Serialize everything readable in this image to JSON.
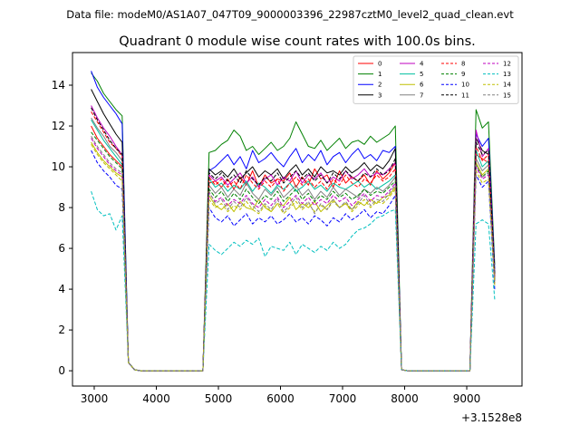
{
  "figure": {
    "suptitle": "Data file: modeM0/AS1A07_047T09_9000003396_22987cztM0_level2_quad_clean.evt"
  },
  "chart_data": {
    "type": "line",
    "title": "Quadrant 0 module wise count rates with 100.0s bins.",
    "xlabel": "",
    "ylabel": "",
    "x_offset_label": "+3.1528e8",
    "xlim": [
      2650,
      9890
    ],
    "ylim": [
      -0.75,
      15.6
    ],
    "xticks": [
      3000,
      4000,
      5000,
      6000,
      7000,
      8000,
      9000
    ],
    "xtick_labels": [
      "3000",
      "4000",
      "5000",
      "6000",
      "7000",
      "8000",
      "9000"
    ],
    "yticks": [
      0,
      2,
      4,
      6,
      8,
      10,
      12,
      14
    ],
    "ytick_labels": [
      "0",
      "2",
      "4",
      "6",
      "8",
      "10",
      "12",
      "14"
    ],
    "legend_location": "top-right",
    "legend_columns": 4,
    "segments": [
      {
        "x_start": 2950,
        "x_step": 100,
        "n_points": 6
      },
      {
        "x_start": 4850,
        "x_step": 100,
        "n_points": 31
      },
      {
        "x_start": 9150,
        "x_step": 100,
        "n_points": 4
      }
    ],
    "gaps": [
      {
        "x": [
          3550,
          3650,
          3750,
          3850,
          3950,
          4750
        ],
        "y": [
          0.4,
          0.05,
          0,
          0,
          0,
          0
        ]
      },
      {
        "x": [
          7950,
          8050,
          8950,
          9050
        ],
        "y": [
          0.05,
          0,
          0,
          0
        ]
      }
    ],
    "series": [
      {
        "name": "0",
        "color": "#ff0000",
        "dashed": false,
        "values": [
          [
            12.0,
            11.4,
            11.0,
            10.6,
            10.3,
            10.0
          ],
          [
            9.2,
            9.3,
            9.0,
            9.4,
            8.9,
            9.5,
            9.1,
            9.8,
            9.0,
            9.6,
            9.2,
            9.4,
            9.3,
            9.7,
            9.0,
            9.5,
            9.1,
            9.9,
            9.4,
            9.6,
            9.0,
            9.8,
            9.2,
            9.5,
            9.3,
            9.6,
            9.1,
            9.8,
            9.4,
            9.7,
            10.2
          ],
          [
            10.6,
            10.4,
            10.2,
            4.6
          ]
        ]
      },
      {
        "name": "1",
        "color": "#008000",
        "dashed": false,
        "values": [
          [
            14.6,
            14.2,
            13.6,
            13.2,
            12.8,
            12.5
          ],
          [
            10.7,
            10.8,
            11.1,
            11.3,
            11.8,
            11.5,
            10.8,
            11.0,
            10.6,
            10.9,
            11.2,
            10.8,
            11.0,
            11.4,
            12.2,
            11.6,
            11.0,
            10.9,
            11.3,
            10.8,
            11.1,
            11.4,
            10.9,
            11.2,
            11.3,
            11.1,
            11.5,
            11.2,
            11.4,
            11.6,
            12.0
          ],
          [
            12.8,
            11.9,
            12.2,
            5.2
          ]
        ]
      },
      {
        "name": "2",
        "color": "#0000ff",
        "dashed": false,
        "values": [
          [
            14.7,
            13.9,
            13.4,
            13.0,
            12.6,
            12.1
          ],
          [
            9.8,
            10.0,
            10.3,
            10.6,
            10.1,
            10.5,
            9.9,
            10.8,
            10.2,
            10.4,
            10.7,
            10.3,
            10.0,
            10.5,
            10.9,
            10.2,
            10.6,
            10.3,
            10.8,
            10.1,
            10.5,
            10.7,
            10.2,
            10.6,
            10.9,
            10.4,
            10.6,
            10.3,
            10.8,
            10.7,
            11.0
          ],
          [
            11.6,
            11.0,
            11.4,
            5.0
          ]
        ]
      },
      {
        "name": "3",
        "color": "#000000",
        "dashed": false,
        "values": [
          [
            13.8,
            13.2,
            12.6,
            12.1,
            11.6,
            11.2
          ],
          [
            9.9,
            9.6,
            9.8,
            9.5,
            9.9,
            9.4,
            9.7,
            10.0,
            9.5,
            9.8,
            9.6,
            9.9,
            9.4,
            9.8,
            10.1,
            9.6,
            9.9,
            9.5,
            10.0,
            9.7,
            9.8,
            9.6,
            10.0,
            9.7,
            9.9,
            10.2,
            9.8,
            10.1,
            9.9,
            10.3,
            10.9
          ],
          [
            11.4,
            10.8,
            10.6,
            4.8
          ]
        ]
      },
      {
        "name": "4",
        "color": "#bf00bf",
        "dashed": false,
        "values": [
          [
            13.0,
            12.4,
            11.9,
            11.5,
            11.0,
            10.6
          ],
          [
            9.6,
            9.3,
            9.5,
            9.1,
            9.4,
            9.7,
            9.2,
            9.5,
            9.0,
            9.4,
            9.6,
            9.1,
            9.5,
            9.3,
            9.8,
            9.2,
            9.6,
            9.4,
            9.7,
            9.2,
            9.5,
            9.3,
            9.8,
            9.4,
            9.6,
            9.9,
            9.5,
            9.7,
            9.6,
            9.9,
            10.2
          ],
          [
            11.8,
            10.5,
            10.9,
            4.7
          ]
        ]
      },
      {
        "name": "5",
        "color": "#00bf9f",
        "dashed": false,
        "values": [
          [
            12.3,
            11.8,
            11.3,
            10.9,
            10.5,
            10.1
          ],
          [
            9.4,
            9.0,
            9.2,
            8.8,
            9.1,
            8.9,
            9.3,
            8.8,
            9.2,
            9.0,
            8.7,
            9.1,
            8.9,
            9.2,
            8.8,
            9.0,
            9.3,
            8.9,
            9.1,
            8.8,
            9.2,
            9.0,
            8.9,
            9.1,
            9.3,
            9.0,
            9.2,
            8.9,
            9.1,
            9.3,
            9.6
          ],
          [
            10.8,
            10.0,
            10.3,
            4.6
          ]
        ]
      },
      {
        "name": "6",
        "color": "#bfbf00",
        "dashed": false,
        "values": [
          [
            11.2,
            10.7,
            10.3,
            10.0,
            9.7,
            9.5
          ],
          [
            8.6,
            8.1,
            7.9,
            8.2,
            7.8,
            8.3,
            8.0,
            7.9,
            8.4,
            8.0,
            7.8,
            8.2,
            8.1,
            8.5,
            7.9,
            8.2,
            8.0,
            8.3,
            7.8,
            8.1,
            8.4,
            8.0,
            8.2,
            7.9,
            8.3,
            8.1,
            8.4,
            8.2,
            8.5,
            8.6,
            9.0
          ],
          [
            10.2,
            9.6,
            9.9,
            4.3
          ]
        ]
      },
      {
        "name": "7",
        "color": "#808080",
        "dashed": false,
        "values": [
          [
            12.4,
            11.9,
            11.5,
            11.0,
            10.7,
            10.3
          ],
          [
            9.1,
            8.7,
            9.0,
            8.5,
            8.9,
            8.6,
            9.2,
            8.7,
            8.4,
            8.9,
            8.6,
            9.0,
            8.5,
            8.8,
            9.1,
            8.6,
            8.9,
            8.4,
            8.8,
            8.5,
            9.0,
            8.6,
            8.9,
            8.7,
            8.5,
            8.9,
            8.7,
            9.0,
            8.8,
            9.1,
            9.5
          ],
          [
            10.4,
            9.8,
            10.1,
            4.5
          ]
        ]
      },
      {
        "name": "8",
        "color": "#ff0000",
        "dashed": true,
        "values": [
          [
            12.7,
            12.2,
            11.7,
            11.2,
            10.9,
            10.5
          ],
          [
            9.5,
            9.1,
            9.4,
            9.0,
            9.3,
            8.9,
            9.6,
            9.2,
            8.9,
            9.3,
            9.0,
            9.4,
            8.8,
            9.2,
            9.5,
            9.1,
            9.4,
            9.0,
            9.3,
            8.9,
            9.4,
            9.1,
            9.6,
            9.2,
            9.0,
            9.4,
            9.2,
            9.6,
            9.3,
            9.5,
            9.9
          ],
          [
            11.0,
            10.3,
            10.6,
            4.6
          ]
        ]
      },
      {
        "name": "9",
        "color": "#008000",
        "dashed": true,
        "values": [
          [
            11.7,
            11.3,
            10.9,
            10.5,
            10.2,
            9.9
          ],
          [
            8.9,
            8.5,
            8.8,
            8.3,
            8.7,
            8.4,
            8.9,
            8.5,
            8.2,
            8.6,
            8.4,
            8.8,
            8.3,
            8.6,
            8.9,
            8.4,
            8.7,
            8.3,
            8.6,
            8.4,
            8.8,
            8.5,
            8.7,
            8.4,
            8.6,
            8.9,
            8.6,
            8.8,
            8.7,
            9.0,
            9.3
          ],
          [
            10.1,
            9.5,
            9.8,
            4.4
          ]
        ]
      },
      {
        "name": "10",
        "color": "#0000ff",
        "dashed": true,
        "values": [
          [
            10.8,
            10.2,
            9.8,
            9.5,
            9.1,
            8.9
          ],
          [
            8.0,
            7.5,
            7.3,
            7.6,
            7.1,
            7.4,
            7.7,
            7.2,
            7.5,
            7.3,
            7.6,
            7.2,
            7.4,
            7.7,
            7.3,
            7.5,
            7.2,
            7.6,
            7.4,
            7.1,
            7.5,
            7.3,
            7.7,
            7.4,
            7.6,
            7.9,
            7.5,
            7.8,
            7.7,
            8.1,
            8.6
          ],
          [
            9.6,
            9.0,
            9.3,
            4.0
          ]
        ]
      },
      {
        "name": "11",
        "color": "#000000",
        "dashed": true,
        "values": [
          [
            12.9,
            12.3,
            11.8,
            11.3,
            10.9,
            10.6
          ],
          [
            9.7,
            9.4,
            9.7,
            9.3,
            9.6,
            9.2,
            9.8,
            9.4,
            9.1,
            9.5,
            9.3,
            9.7,
            9.2,
            9.5,
            9.8,
            9.4,
            9.7,
            9.3,
            9.6,
            9.2,
            9.7,
            9.4,
            9.8,
            9.5,
            9.3,
            9.7,
            9.5,
            9.9,
            9.6,
            9.8,
            10.4
          ],
          [
            11.2,
            10.6,
            10.8,
            4.7
          ]
        ]
      },
      {
        "name": "12",
        "color": "#bf00bf",
        "dashed": true,
        "values": [
          [
            11.4,
            10.9,
            10.5,
            10.1,
            9.8,
            9.6
          ],
          [
            8.7,
            8.3,
            8.5,
            8.1,
            8.4,
            8.2,
            8.6,
            8.2,
            8.0,
            8.4,
            8.1,
            8.5,
            8.0,
            8.3,
            8.6,
            8.2,
            8.5,
            8.1,
            8.4,
            8.2,
            8.6,
            8.3,
            8.5,
            8.1,
            8.4,
            8.7,
            8.3,
            8.6,
            8.5,
            8.8,
            9.2
          ],
          [
            10.0,
            9.4,
            9.6,
            4.3
          ]
        ]
      },
      {
        "name": "13",
        "color": "#00bfbf",
        "dashed": true,
        "values": [
          [
            8.8,
            7.9,
            7.6,
            7.7,
            6.9,
            7.6
          ],
          [
            6.2,
            5.9,
            5.7,
            6.0,
            6.3,
            6.1,
            6.4,
            6.2,
            6.5,
            5.6,
            6.1,
            6.0,
            5.9,
            6.3,
            5.7,
            6.2,
            6.0,
            5.8,
            6.1,
            5.9,
            6.3,
            6.0,
            6.2,
            6.6,
            6.9,
            7.0,
            7.2,
            7.5,
            7.6,
            7.8,
            7.9
          ],
          [
            7.2,
            7.4,
            7.2,
            3.5
          ]
        ]
      },
      {
        "name": "14",
        "color": "#bfbf00",
        "dashed": true,
        "values": [
          [
            11.1,
            10.6,
            10.2,
            9.9,
            9.6,
            9.3
          ],
          [
            8.4,
            8.0,
            8.2,
            7.8,
            8.1,
            7.9,
            8.3,
            7.9,
            7.7,
            8.1,
            7.8,
            8.2,
            7.7,
            8.0,
            8.3,
            7.9,
            8.2,
            7.8,
            8.1,
            7.9,
            8.3,
            8.0,
            8.2,
            7.8,
            8.1,
            8.4,
            8.0,
            8.3,
            8.2,
            8.5,
            8.9
          ],
          [
            9.8,
            9.2,
            9.4,
            4.2
          ]
        ]
      },
      {
        "name": "15",
        "color": "#808080",
        "dashed": true,
        "values": [
          [
            11.5,
            11.0,
            10.6,
            10.2,
            9.9,
            9.7
          ],
          [
            8.8,
            8.2,
            8.4,
            7.9,
            8.3,
            8.0,
            8.5,
            8.1,
            7.8,
            8.2,
            7.9,
            8.4,
            7.8,
            8.1,
            8.5,
            8.0,
            8.3,
            7.7,
            8.2,
            7.9,
            8.4,
            8.0,
            8.3,
            7.9,
            8.2,
            8.6,
            8.1,
            8.4,
            8.3,
            8.7,
            9.1
          ],
          [
            10.1,
            9.5,
            9.7,
            4.4
          ]
        ]
      }
    ]
  }
}
